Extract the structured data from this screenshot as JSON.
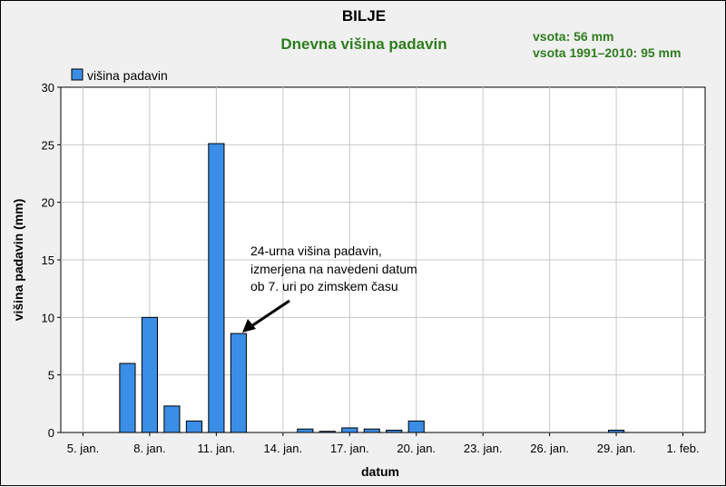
{
  "chart_data": {
    "type": "bar",
    "title": "BILJE",
    "subtitle": "Dnevna višina padavin",
    "summary": [
      "vsota: 56 mm",
      "vsota 1991–2010: 95 mm"
    ],
    "xlabel": "datum",
    "ylabel": "višina padavin (mm)",
    "legend": {
      "label": "višina padavin",
      "position": "top-left",
      "color": "#3a8ee6"
    },
    "ylim": [
      0,
      30
    ],
    "yticks": [
      0,
      5,
      10,
      15,
      20,
      25,
      30
    ],
    "xticks": [
      {
        "day": 5,
        "label": "5. jan."
      },
      {
        "day": 8,
        "label": "8. jan."
      },
      {
        "day": 11,
        "label": "11. jan."
      },
      {
        "day": 14,
        "label": "14. jan."
      },
      {
        "day": 17,
        "label": "17. jan."
      },
      {
        "day": 20,
        "label": "20. jan."
      },
      {
        "day": 23,
        "label": "23. jan."
      },
      {
        "day": 26,
        "label": "26. jan."
      },
      {
        "day": 29,
        "label": "29. jan."
      },
      {
        "day": 32,
        "label": "1. feb."
      }
    ],
    "xrange_days": [
      4,
      33
    ],
    "grid": true,
    "bars": [
      {
        "day": 7,
        "value": 6.0
      },
      {
        "day": 8,
        "value": 10.0
      },
      {
        "day": 9,
        "value": 2.3
      },
      {
        "day": 10,
        "value": 1.0
      },
      {
        "day": 11,
        "value": 25.1
      },
      {
        "day": 12,
        "value": 8.6
      },
      {
        "day": 15,
        "value": 0.3
      },
      {
        "day": 16,
        "value": 0.1
      },
      {
        "day": 17,
        "value": 0.4
      },
      {
        "day": 18,
        "value": 0.3
      },
      {
        "day": 19,
        "value": 0.2
      },
      {
        "day": 20,
        "value": 1.0
      },
      {
        "day": 29,
        "value": 0.2
      }
    ],
    "annotation": {
      "lines": [
        "24-urna višina padavin,",
        "izmerjena na navedeni datum",
        "ob 7. uri po zimskem času"
      ],
      "points_to_day": 12
    }
  }
}
